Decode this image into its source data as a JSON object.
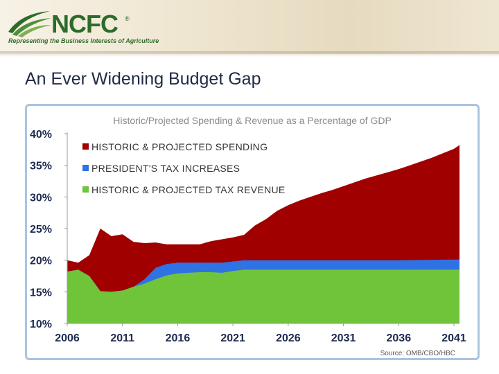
{
  "header": {
    "logo_name": "NCFC",
    "logo_registered": "®",
    "logo_tagline": "Representing the Business Interests of Agriculture"
  },
  "slide": {
    "title": "An Ever Widening Budget Gap"
  },
  "colors": {
    "spending": "#a00000",
    "tax_increase": "#2f72e4",
    "revenue": "#6fc43a",
    "title_text": "#1f2a44",
    "logo_green": "#2e6b2a",
    "frame": "#a9c4df"
  },
  "chart_data": {
    "type": "area",
    "title": "Historic/Projected Spending & Revenue as a Percentage of GDP",
    "source": "Source: OMB/CBO/HBC",
    "xlim": [
      2006,
      2041.5
    ],
    "ylim": [
      10,
      40
    ],
    "x_ticks": [
      2006,
      2011,
      2016,
      2021,
      2026,
      2031,
      2036,
      2041
    ],
    "x_tick_labels": [
      "2006",
      "2011",
      "2016",
      "2021",
      "2026",
      "2031",
      "2036",
      "2041"
    ],
    "y_ticks": [
      10,
      15,
      20,
      25,
      30,
      35,
      40
    ],
    "y_tick_labels": [
      "10%",
      "15%",
      "20%",
      "25%",
      "30%",
      "35%",
      "40%"
    ],
    "legend_position": "top-left",
    "legend": [
      {
        "label": "HISTORIC & PROJECTED SPENDING",
        "color": "#a00000"
      },
      {
        "label": "PRESIDENT'S TAX INCREASES",
        "color": "#2f72e4"
      },
      {
        "label": "HISTORIC & PROJECTED TAX REVENUE",
        "color": "#6fc43a"
      }
    ],
    "series": [
      {
        "name": "Historic & Projected Spending",
        "points": [
          [
            2006,
            20.0
          ],
          [
            2007,
            19.6
          ],
          [
            2008,
            20.8
          ],
          [
            2009,
            25.0
          ],
          [
            2010,
            23.8
          ],
          [
            2011,
            24.1
          ],
          [
            2012,
            22.9
          ],
          [
            2013,
            22.7
          ],
          [
            2014,
            22.8
          ],
          [
            2015,
            22.5
          ],
          [
            2016,
            22.5
          ],
          [
            2017,
            22.5
          ],
          [
            2018,
            22.5
          ],
          [
            2019,
            23.0
          ],
          [
            2020,
            23.3
          ],
          [
            2021,
            23.6
          ],
          [
            2022,
            24.0
          ],
          [
            2023,
            25.5
          ],
          [
            2024,
            26.5
          ],
          [
            2025,
            27.8
          ],
          [
            2026,
            28.7
          ],
          [
            2027,
            29.4
          ],
          [
            2028,
            30.0
          ],
          [
            2029,
            30.6
          ],
          [
            2030,
            31.1
          ],
          [
            2031,
            31.7
          ],
          [
            2032,
            32.3
          ],
          [
            2033,
            32.9
          ],
          [
            2034,
            33.4
          ],
          [
            2035,
            33.9
          ],
          [
            2036,
            34.4
          ],
          [
            2037,
            35.0
          ],
          [
            2038,
            35.6
          ],
          [
            2039,
            36.2
          ],
          [
            2040,
            36.9
          ],
          [
            2041,
            37.6
          ],
          [
            2041.5,
            38.2
          ]
        ]
      },
      {
        "name": "President's Tax Increases",
        "points": [
          [
            2006,
            18.2
          ],
          [
            2007,
            18.5
          ],
          [
            2008,
            17.5
          ],
          [
            2009,
            15.1
          ],
          [
            2010,
            15.0
          ],
          [
            2011,
            15.2
          ],
          [
            2012,
            15.8
          ],
          [
            2013,
            17.0
          ],
          [
            2014,
            18.8
          ],
          [
            2015,
            19.4
          ],
          [
            2016,
            19.6
          ],
          [
            2017,
            19.6
          ],
          [
            2018,
            19.6
          ],
          [
            2019,
            19.6
          ],
          [
            2020,
            19.6
          ],
          [
            2021,
            19.8
          ],
          [
            2022,
            20.0
          ],
          [
            2026,
            20.0
          ],
          [
            2031,
            20.0
          ],
          [
            2036,
            20.0
          ],
          [
            2041,
            20.1
          ],
          [
            2041.5,
            20.1
          ]
        ]
      },
      {
        "name": "Historic & Projected Tax Revenue",
        "points": [
          [
            2006,
            18.2
          ],
          [
            2007,
            18.5
          ],
          [
            2008,
            17.5
          ],
          [
            2009,
            15.1
          ],
          [
            2010,
            15.0
          ],
          [
            2011,
            15.2
          ],
          [
            2012,
            15.8
          ],
          [
            2013,
            16.3
          ],
          [
            2014,
            17.0
          ],
          [
            2015,
            17.6
          ],
          [
            2016,
            17.9
          ],
          [
            2017,
            18.0
          ],
          [
            2018,
            18.1
          ],
          [
            2019,
            18.1
          ],
          [
            2020,
            18.0
          ],
          [
            2021,
            18.3
          ],
          [
            2022,
            18.5
          ],
          [
            2026,
            18.5
          ],
          [
            2031,
            18.5
          ],
          [
            2036,
            18.5
          ],
          [
            2041,
            18.5
          ],
          [
            2041.5,
            18.5
          ]
        ]
      }
    ]
  }
}
